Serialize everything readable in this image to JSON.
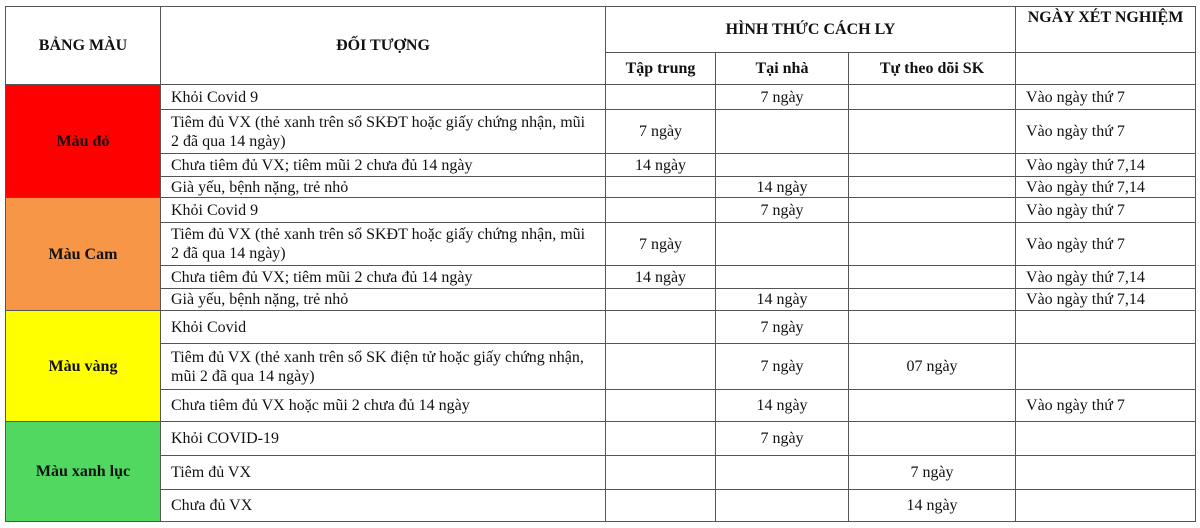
{
  "header": {
    "color_scale": "BẢNG MÀU",
    "subject": "ĐỐI TƯỢNG",
    "quarantine_form": "HÌNH THỨC CÁCH LY",
    "test_day": "NGÀY XÉT NGHIỆM",
    "sub": [
      "Tập trung",
      "Tại nhà",
      "Tự theo dõi SK"
    ]
  },
  "groups": [
    {
      "label": "Màu đỏ",
      "color": "#ff0000",
      "rows": [
        {
          "subject": "Khỏi Covid 9",
          "central": "",
          "home": "7 ngày",
          "self": "",
          "test": "Vào ngày thứ 7",
          "h": 25
        },
        {
          "subject": "Tiêm đủ VX (thẻ xanh trên sổ SKĐT hoặc giấy chứng nhận,  mũi 2 đã qua 14 ngày)",
          "central": "7 ngày",
          "home": "",
          "self": "",
          "test": "Vào ngày thứ 7",
          "h": 44
        },
        {
          "subject": "Chưa tiêm đủ VX; tiêm mũi 2 chưa đủ 14 ngày",
          "central": "14 ngày",
          "home": "",
          "self": "",
          "test": "Vào ngày thứ 7,14",
          "h": 23
        },
        {
          "subject": "Già yếu, bệnh nặng, trẻ nhỏ",
          "central": "",
          "home": "14 ngày",
          "self": "",
          "test": "Vào ngày thứ 7,14",
          "h": 21
        }
      ]
    },
    {
      "label": "Màu Cam",
      "color": "#f79646",
      "rows": [
        {
          "subject": "Khỏi Covid 9",
          "central": "",
          "home": "7 ngày",
          "self": "",
          "test": "Vào ngày thứ 7",
          "h": 25
        },
        {
          "subject": "Tiêm đủ VX (thẻ xanh trên sổ SKĐT hoặc giấy chứng nhận,  mũi 2 đã qua 14 ngày)",
          "central": "7 ngày",
          "home": "",
          "self": "",
          "test": "Vào ngày thứ 7",
          "h": 43
        },
        {
          "subject": "Chưa tiêm đủ VX; tiêm mũi 2 chưa đủ 14 ngày",
          "central": "14 ngày",
          "home": "",
          "self": "",
          "test": "Vào ngày thứ 7,14",
          "h": 23
        },
        {
          "subject": "Già yếu, bệnh nặng, trẻ nhỏ",
          "central": "",
          "home": "14 ngày",
          "self": "",
          "test": "Vào ngày thứ 7,14",
          "h": 22
        }
      ]
    },
    {
      "label": "Màu vàng",
      "color": "#ffff00",
      "rows": [
        {
          "subject": "Khỏi Covid",
          "central": "",
          "home": "7 ngày",
          "self": "",
          "test": "",
          "h": 33
        },
        {
          "subject": "Tiêm đủ VX (thẻ xanh trên sổ SK điện tử hoặc giấy chứng nhận,  mũi 2 đã qua 14 ngày)",
          "central": "",
          "home": "7 ngày",
          "self": "07 ngày",
          "test": "",
          "h": 46
        },
        {
          "subject": "Chưa tiêm đủ VX hoặc mũi 2 chưa đủ 14 ngày",
          "central": "",
          "home": "14 ngày",
          "self": "",
          "test": "Vào ngày thứ 7",
          "h": 32
        }
      ]
    },
    {
      "label": "Màu xanh lục",
      "color": "#50d860",
      "rows": [
        {
          "subject": "Khỏi COVID-19",
          "central": "",
          "home": "7 ngày",
          "self": "",
          "test": "",
          "h": 34
        },
        {
          "subject": "Tiêm đủ VX",
          "central": "",
          "home": "",
          "self": "7 ngày",
          "test": "",
          "h": 34
        },
        {
          "subject": "Chưa đủ VX",
          "central": "",
          "home": "",
          "self": "14 ngày",
          "test": "",
          "h": 32
        }
      ]
    }
  ]
}
